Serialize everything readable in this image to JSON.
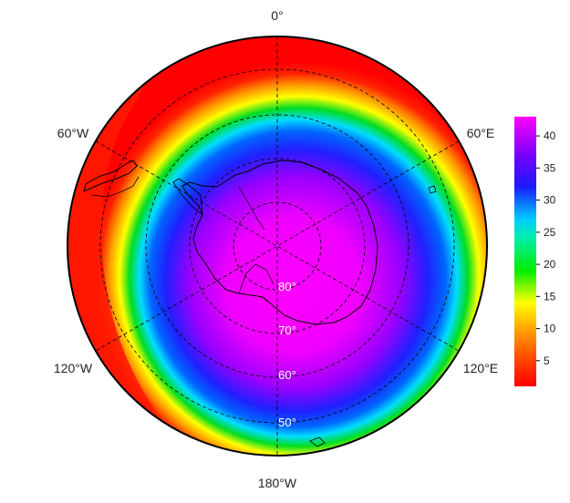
{
  "map": {
    "projection": "south polar stereographic",
    "longitude_labels": [
      "0°",
      "60°E",
      "120°E",
      "180°W",
      "120°W",
      "60°W"
    ],
    "latitude_labels": [
      "80°",
      "70°",
      "60°",
      "50°"
    ],
    "colorbar_ticks": [
      5,
      10,
      15,
      20,
      25,
      30,
      35,
      40
    ],
    "colorbar_range": [
      1,
      43
    ],
    "colors": {
      "red": "#ff0000",
      "orange": "#ff9900",
      "yellow": "#ffff00",
      "green": "#00dd00",
      "cyan": "#00ddff",
      "blue": "#1a1aff",
      "purple": "#8a00ff",
      "magenta": "#ff00ff"
    }
  }
}
